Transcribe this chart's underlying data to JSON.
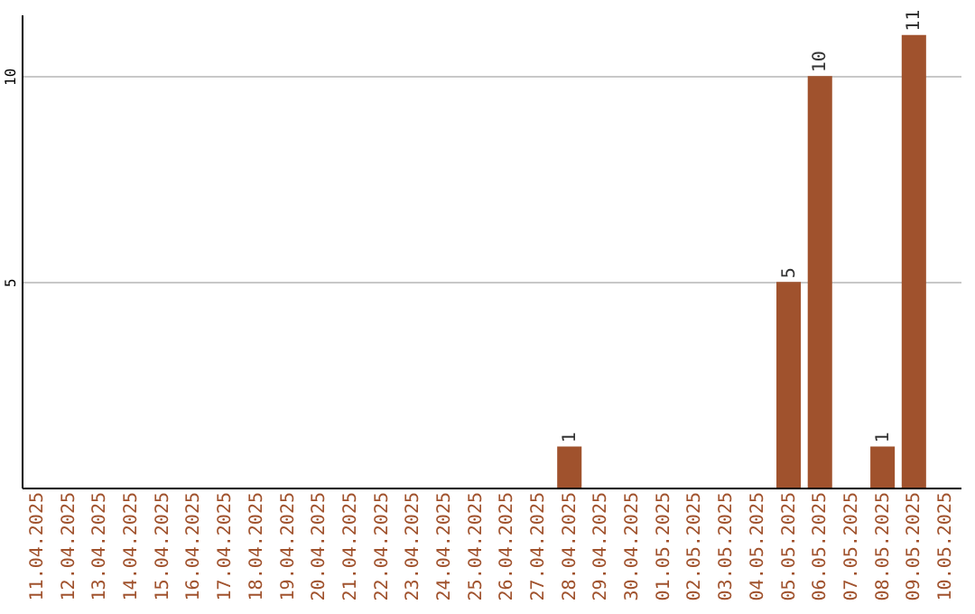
{
  "chart_data": {
    "type": "bar",
    "categories": [
      "11.04.2025",
      "12.04.2025",
      "13.04.2025",
      "14.04.2025",
      "15.04.2025",
      "16.04.2025",
      "17.04.2025",
      "18.04.2025",
      "19.04.2025",
      "20.04.2025",
      "21.04.2025",
      "22.04.2025",
      "23.04.2025",
      "24.04.2025",
      "25.04.2025",
      "26.04.2025",
      "27.04.2025",
      "28.04.2025",
      "29.04.2025",
      "30.04.2025",
      "01.05.2025",
      "02.05.2025",
      "03.05.2025",
      "04.05.2025",
      "05.05.2025",
      "06.05.2025",
      "07.05.2025",
      "08.05.2025",
      "09.05.2025",
      "10.05.2025"
    ],
    "values": [
      0,
      0,
      0,
      0,
      0,
      0,
      0,
      0,
      0,
      0,
      0,
      0,
      0,
      0,
      0,
      0,
      0,
      1,
      0,
      0,
      0,
      0,
      0,
      0,
      5,
      10,
      0,
      1,
      11,
      0
    ],
    "value_labels": [
      null,
      null,
      null,
      null,
      null,
      null,
      null,
      null,
      null,
      null,
      null,
      null,
      null,
      null,
      null,
      null,
      null,
      "1",
      null,
      null,
      null,
      null,
      null,
      null,
      "5",
      "10",
      null,
      "1",
      "11",
      null
    ],
    "color": "#a0522d",
    "ylim": [
      0,
      11.5
    ],
    "yticks": [
      5,
      10
    ],
    "grid": "y"
  }
}
